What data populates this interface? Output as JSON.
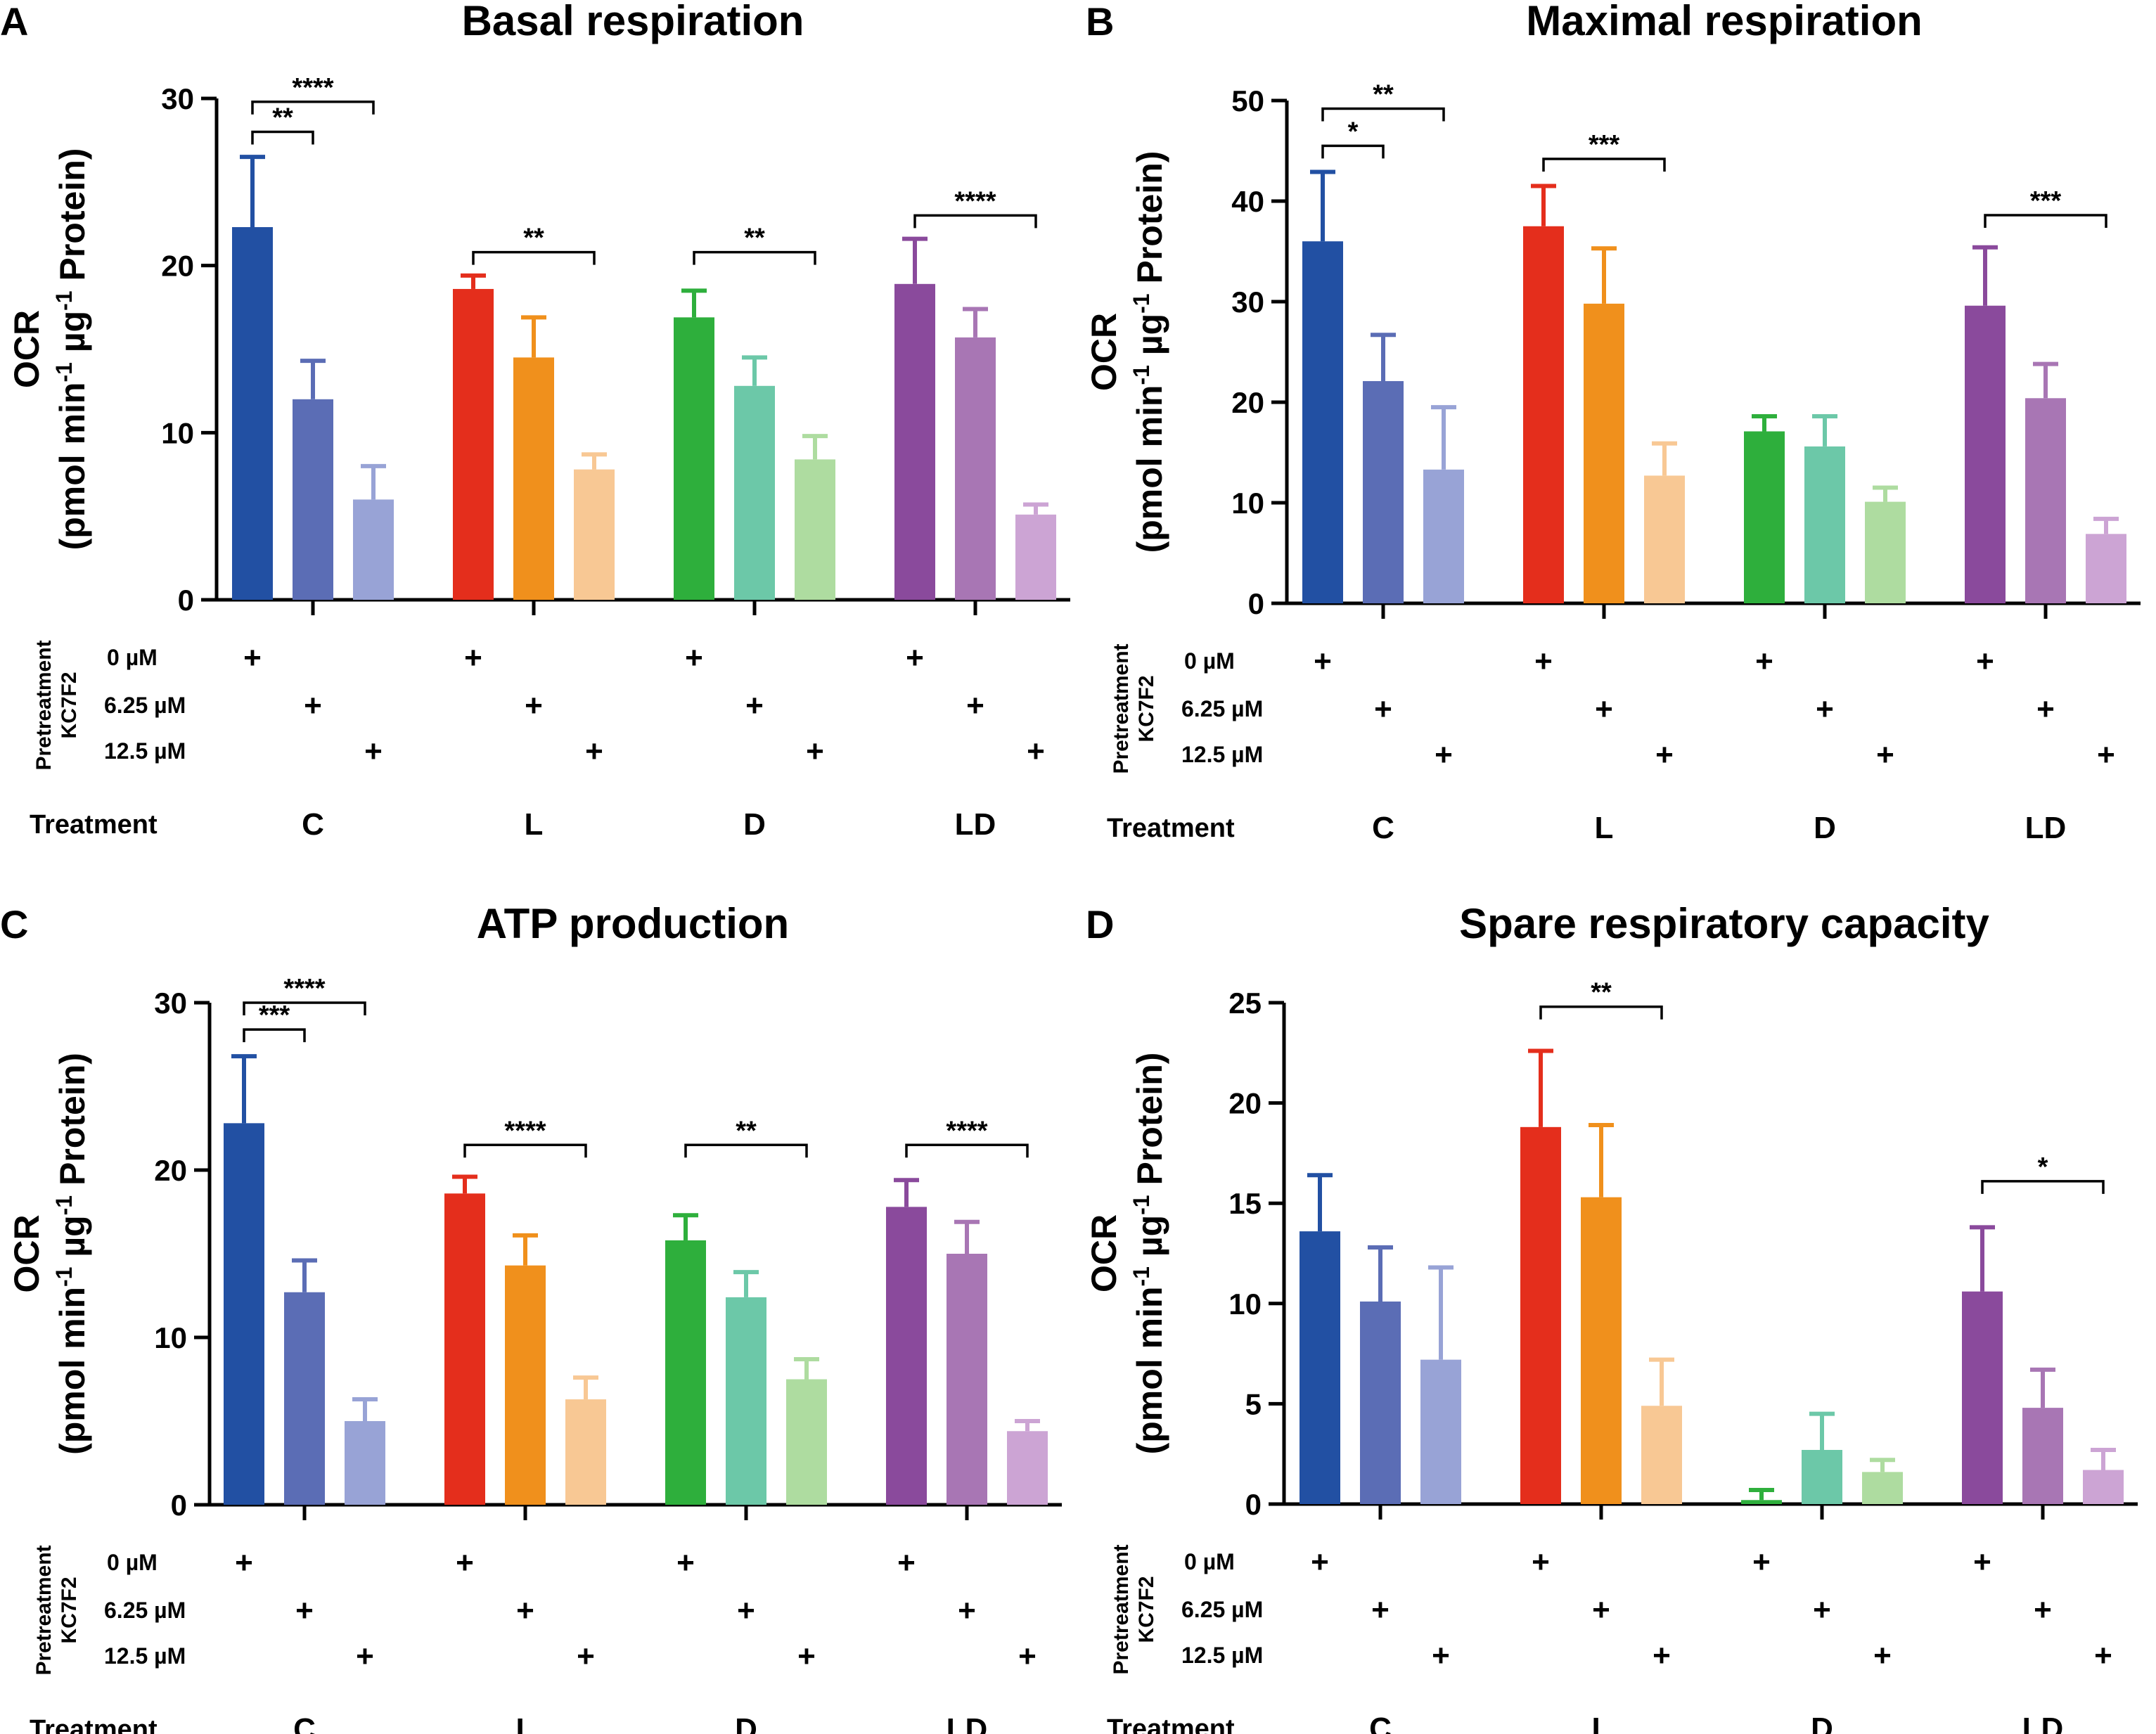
{
  "figure": {
    "y_axis_label_line1": "OCR",
    "y_axis_label_line2": "(pmol min",
    "y_axis_label_sup1": "-1",
    "y_axis_label_mid": " µg",
    "y_axis_label_sup2": "-1",
    "y_axis_label_end": " Protein)",
    "pretreatment_label_line1": "Pretreatment",
    "pretreatment_label_line2": "KC7F2",
    "dose_labels": [
      "0 µM",
      "6.25 µM",
      "12.5 µM"
    ],
    "treatment_row_label": "Treatment",
    "plus_symbol": "+",
    "groups": [
      "C",
      "L",
      "D",
      "LD"
    ],
    "colors": {
      "C": [
        "#2250a3",
        "#5b6db5",
        "#98a3d6"
      ],
      "L": [
        "#e42e1c",
        "#f0901c",
        "#f8c894"
      ],
      "D": [
        "#2eaf3c",
        "#6cc8a8",
        "#aedca0"
      ],
      "LD": [
        "#8a4a9c",
        "#a876b4",
        "#cca4d4"
      ],
      "axis": "#000000"
    }
  },
  "chart_data": [
    {
      "panel": "A",
      "type": "bar",
      "title": "Basal respiration",
      "ylabel": "OCR (pmol min-1 µg-1 Protein)",
      "ylim": [
        0,
        30
      ],
      "yticks": [
        0,
        10,
        20,
        30
      ],
      "categories": [
        "C",
        "L",
        "D",
        "LD"
      ],
      "series": [
        {
          "name": "0 µM",
          "values": [
            22.3,
            18.6,
            16.9,
            18.9
          ],
          "errors": [
            4.2,
            0.8,
            1.6,
            2.7
          ]
        },
        {
          "name": "6.25 µM",
          "values": [
            12.0,
            14.5,
            12.8,
            15.7
          ],
          "errors": [
            2.3,
            2.4,
            1.7,
            1.7
          ]
        },
        {
          "name": "12.5 µM",
          "values": [
            6.0,
            7.8,
            8.4,
            5.1
          ],
          "errors": [
            2.0,
            0.9,
            1.4,
            0.6
          ]
        }
      ],
      "significance": [
        {
          "group": "C",
          "from": 0,
          "to": 1,
          "label": "**",
          "y": 28.0
        },
        {
          "group": "C",
          "from": 0,
          "to": 2,
          "label": "****",
          "y": 29.8
        },
        {
          "group": "L",
          "from": 0,
          "to": 2,
          "label": "**",
          "y": 20.8
        },
        {
          "group": "D",
          "from": 0,
          "to": 2,
          "label": "**",
          "y": 20.8
        },
        {
          "group": "LD",
          "from": 0,
          "to": 2,
          "label": "****",
          "y": 23.0
        }
      ]
    },
    {
      "panel": "B",
      "type": "bar",
      "title": "Maximal respiration",
      "ylabel": "OCR (pmol min-1 µg-1 Protein)",
      "ylim": [
        0,
        50
      ],
      "yticks": [
        0,
        10,
        20,
        30,
        40,
        50
      ],
      "categories": [
        "C",
        "L",
        "D",
        "LD"
      ],
      "series": [
        {
          "name": "0 µM",
          "values": [
            36.0,
            37.5,
            17.1,
            29.6
          ],
          "errors": [
            6.9,
            4.0,
            1.5,
            5.8
          ]
        },
        {
          "name": "6.25 µM",
          "values": [
            22.1,
            29.8,
            15.6,
            20.4
          ],
          "errors": [
            4.6,
            5.5,
            3.0,
            3.4
          ]
        },
        {
          "name": "12.5 µM",
          "values": [
            13.3,
            12.7,
            10.1,
            6.9
          ],
          "errors": [
            6.2,
            3.2,
            1.4,
            1.5
          ]
        }
      ],
      "significance": [
        {
          "group": "C",
          "from": 0,
          "to": 1,
          "label": "*",
          "y": 45.5
        },
        {
          "group": "C",
          "from": 0,
          "to": 2,
          "label": "**",
          "y": 49.2
        },
        {
          "group": "L",
          "from": 0,
          "to": 2,
          "label": "***",
          "y": 44.2
        },
        {
          "group": "LD",
          "from": 0,
          "to": 2,
          "label": "***",
          "y": 38.6
        }
      ]
    },
    {
      "panel": "C",
      "type": "bar",
      "title": "ATP production",
      "ylabel": "OCR (pmol min-1 µg-1 Protein)",
      "ylim": [
        0,
        30
      ],
      "yticks": [
        0,
        10,
        20,
        30
      ],
      "categories": [
        "C",
        "L",
        "D",
        "LD"
      ],
      "series": [
        {
          "name": "0 µM",
          "values": [
            22.8,
            18.6,
            15.8,
            17.8
          ],
          "errors": [
            4.0,
            1.0,
            1.5,
            1.6
          ]
        },
        {
          "name": "6.25 µM",
          "values": [
            12.7,
            14.3,
            12.4,
            15.0
          ],
          "errors": [
            1.9,
            1.8,
            1.5,
            1.9
          ]
        },
        {
          "name": "12.5 µM",
          "values": [
            5.0,
            6.3,
            7.5,
            4.4
          ],
          "errors": [
            1.3,
            1.3,
            1.2,
            0.6
          ]
        }
      ],
      "significance": [
        {
          "group": "C",
          "from": 0,
          "to": 1,
          "label": "***",
          "y": 28.4
        },
        {
          "group": "C",
          "from": 0,
          "to": 2,
          "label": "****",
          "y": 30.0
        },
        {
          "group": "L",
          "from": 0,
          "to": 2,
          "label": "****",
          "y": 21.5
        },
        {
          "group": "D",
          "from": 0,
          "to": 2,
          "label": "**",
          "y": 21.5
        },
        {
          "group": "LD",
          "from": 0,
          "to": 2,
          "label": "****",
          "y": 21.5
        }
      ]
    },
    {
      "panel": "D",
      "type": "bar",
      "title": "Spare respiratory capacity",
      "ylabel": "OCR (pmol min-1 µg-1 Protein)",
      "ylim": [
        0,
        25
      ],
      "yticks": [
        0,
        5,
        10,
        15,
        20,
        25
      ],
      "categories": [
        "C",
        "L",
        "D",
        "LD"
      ],
      "series": [
        {
          "name": "0 µM",
          "values": [
            13.6,
            18.8,
            0.2,
            10.6
          ],
          "errors": [
            2.8,
            3.8,
            0.5,
            3.2
          ]
        },
        {
          "name": "6.25 µM",
          "values": [
            10.1,
            15.3,
            2.7,
            4.8
          ],
          "errors": [
            2.7,
            3.6,
            1.8,
            1.9
          ]
        },
        {
          "name": "12.5 µM",
          "values": [
            7.2,
            4.9,
            1.6,
            1.7
          ],
          "errors": [
            4.6,
            2.3,
            0.6,
            1.0
          ]
        }
      ],
      "significance": [
        {
          "group": "L",
          "from": 0,
          "to": 2,
          "label": "**",
          "y": 24.8
        },
        {
          "group": "LD",
          "from": 0,
          "to": 2,
          "label": "*",
          "y": 16.1
        }
      ]
    }
  ]
}
